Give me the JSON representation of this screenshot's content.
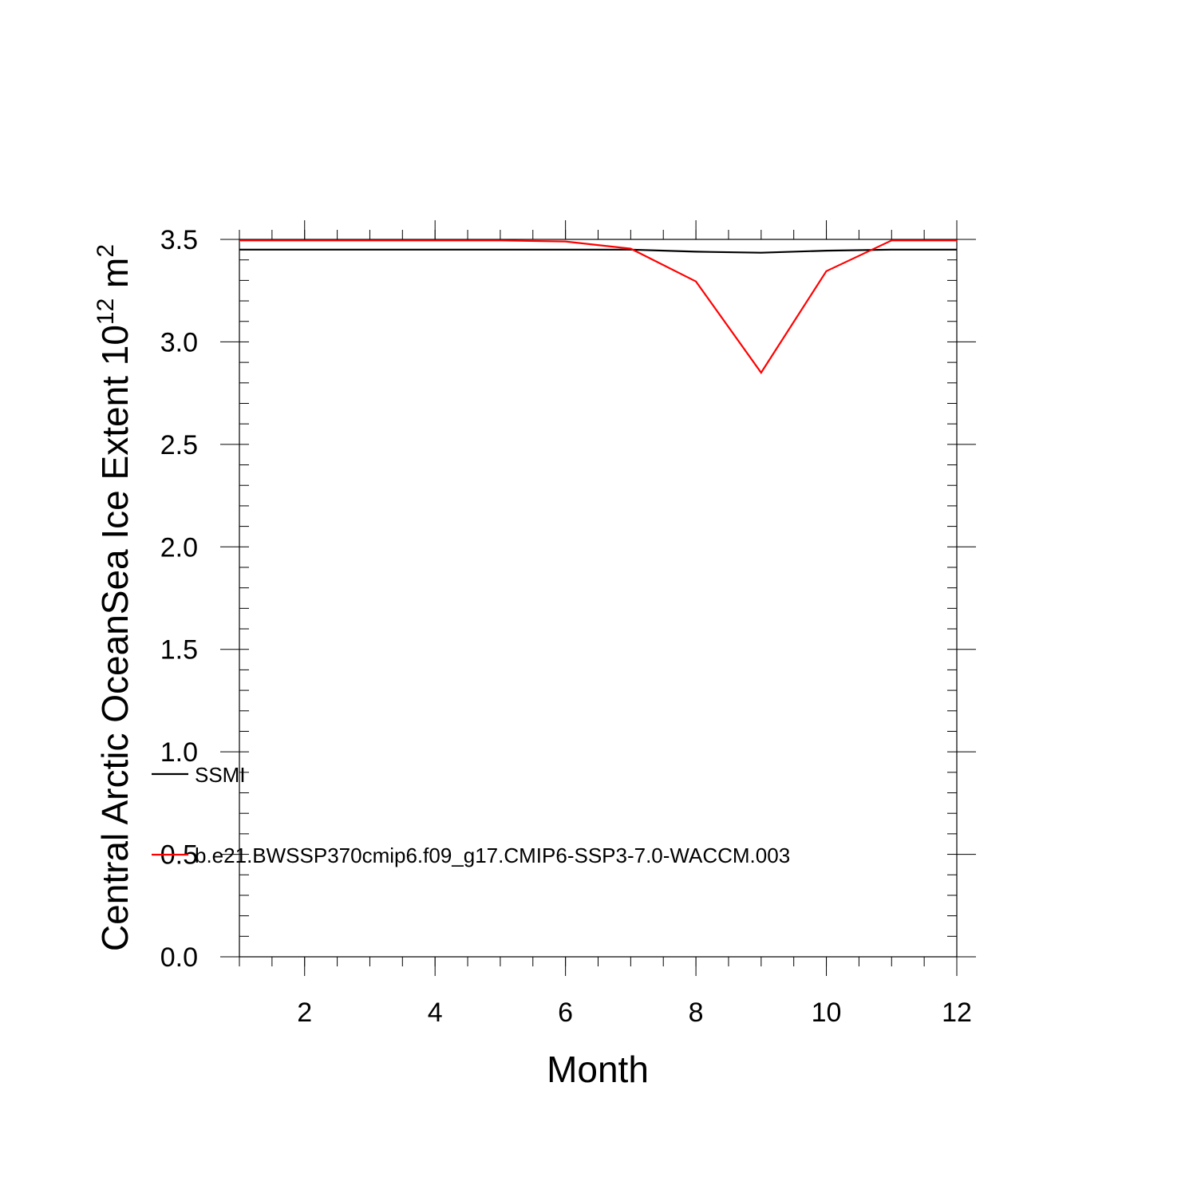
{
  "chart_data": {
    "type": "line",
    "xlabel": "Month",
    "ylabel": {
      "prefix": "Central Arctic OceanSea Ice Extent 10",
      "exp": "12",
      "unit": " m",
      "unit_exp": "2"
    },
    "xlim": [
      1,
      12
    ],
    "ylim": [
      0,
      3.5
    ],
    "xticks": [
      2,
      4,
      6,
      8,
      10,
      12
    ],
    "yticks": [
      0.0,
      0.5,
      1.0,
      1.5,
      2.0,
      2.5,
      3.0,
      3.5
    ],
    "ytick_labels": [
      "0.0",
      "0.5",
      "1.0",
      "1.5",
      "2.0",
      "2.5",
      "3.0",
      "3.5"
    ],
    "x": [
      1,
      2,
      3,
      4,
      5,
      6,
      7,
      8,
      9,
      10,
      11,
      12
    ],
    "series": [
      {
        "name": "SSMI",
        "color": "#000000",
        "values": [
          3.45,
          3.45,
          3.45,
          3.45,
          3.45,
          3.45,
          3.45,
          3.44,
          3.435,
          3.445,
          3.45,
          3.45
        ]
      },
      {
        "name": "b.e21.BWSSP370cmip6.f09_g17.CMIP6-SSP3-7.0-WACCM.003",
        "color": "#ff0000",
        "values": [
          3.495,
          3.495,
          3.495,
          3.495,
          3.495,
          3.49,
          3.455,
          3.295,
          2.85,
          3.345,
          3.495,
          3.495
        ]
      }
    ],
    "grid": false,
    "legend": "lower-left"
  }
}
